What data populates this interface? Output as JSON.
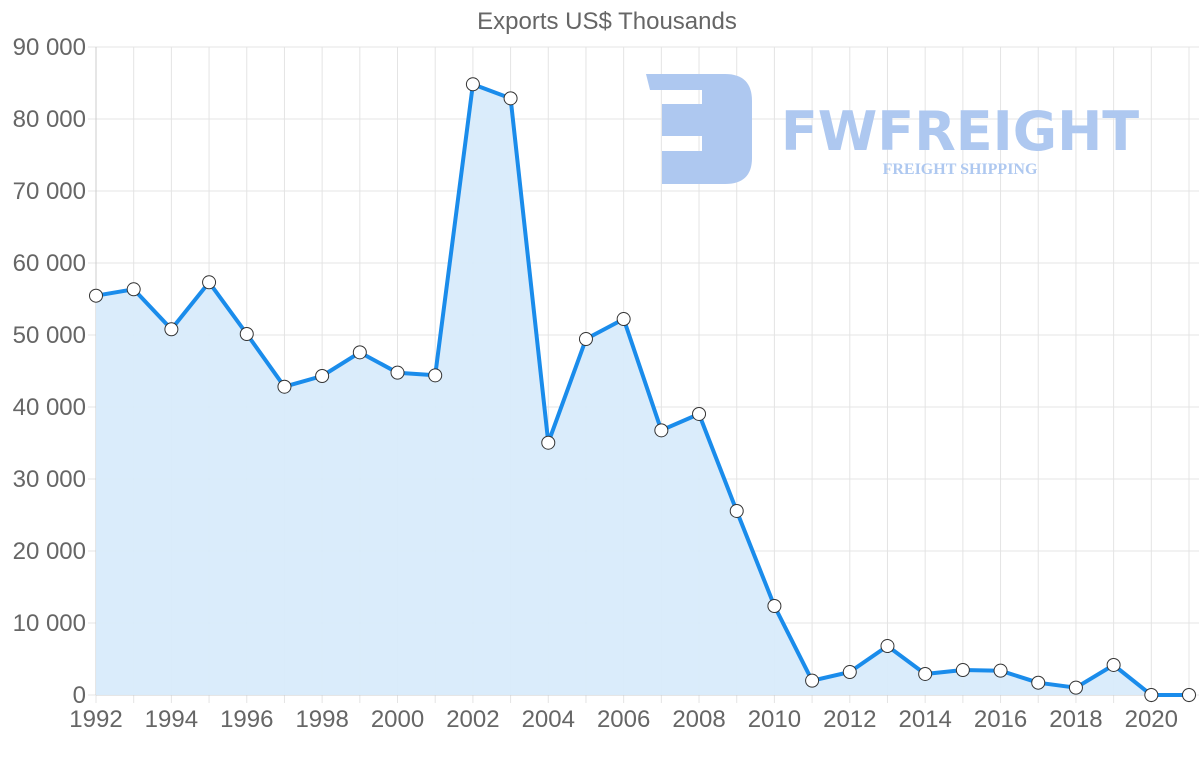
{
  "chart_data": {
    "type": "area",
    "title": "Exports US$ Thousands",
    "xlabel": "",
    "ylabel": "",
    "x": [
      1992,
      1993,
      1994,
      1995,
      1996,
      1997,
      1998,
      1999,
      2000,
      2001,
      2002,
      2003,
      2004,
      2005,
      2006,
      2007,
      2008,
      2009,
      2010,
      2011,
      2012,
      2013,
      2014,
      2015,
      2016,
      2017,
      2018,
      2019,
      2020,
      2021
    ],
    "series": [
      {
        "name": "Exports US$ Thousands",
        "values": [
          55460,
          56350,
          50790,
          57320,
          50140,
          42820,
          44310,
          47590,
          44770,
          44400,
          84820,
          82870,
          35040,
          49440,
          52220,
          36760,
          39030,
          25560,
          12360,
          1990,
          3190,
          6800,
          2920,
          3470,
          3380,
          1710,
          1020,
          4170,
          0,
          0
        ]
      }
    ],
    "ylim": [
      0,
      90000
    ],
    "yticks": [
      "0",
      "10 000",
      "20 000",
      "30 000",
      "40 000",
      "50 000",
      "60 000",
      "70 000",
      "80 000",
      "90 000"
    ],
    "xticks": [
      "1992",
      "1994",
      "1996",
      "1998",
      "2000",
      "2002",
      "2004",
      "2006",
      "2008",
      "2010",
      "2012",
      "2014",
      "2016",
      "2018",
      "2020"
    ],
    "grid": true,
    "legend": "none",
    "colors": {
      "line": "#1a8ceb",
      "fill": "#d8ebfb",
      "marker_fill": "#ffffff",
      "marker_stroke": "#333333"
    }
  },
  "watermark": {
    "brand": "FWFREIGHT",
    "tagline": "FREIGHT SHIPPING",
    "color": "#aec8f0"
  }
}
